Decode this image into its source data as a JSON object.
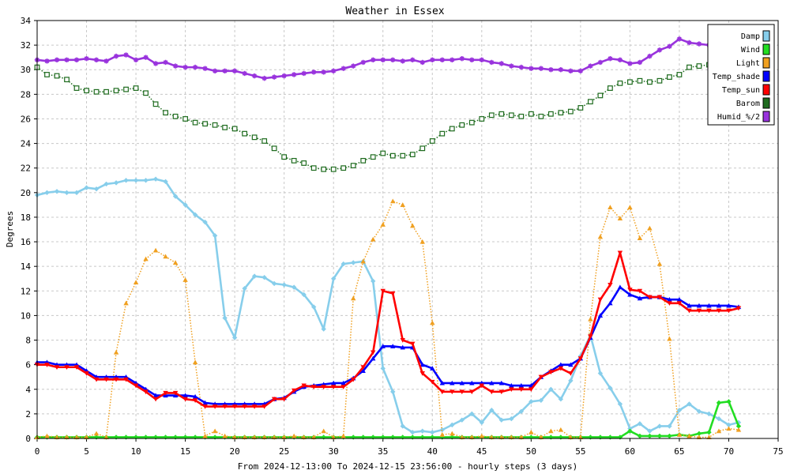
{
  "chart_data": {
    "type": "line",
    "title": "Weather in Essex",
    "xlabel": "From 2024-12-13:00 To 2024-12-15 23:56:00 - hourly steps (3 days)",
    "ylabel": "Degrees",
    "xlim": [
      0,
      75
    ],
    "ylim": [
      0,
      34
    ],
    "x_ticks": [
      0,
      5,
      10,
      15,
      20,
      25,
      30,
      35,
      40,
      45,
      50,
      55,
      60,
      65,
      70,
      75
    ],
    "y_ticks": [
      0,
      2,
      4,
      6,
      8,
      10,
      12,
      14,
      16,
      18,
      20,
      22,
      24,
      26,
      28,
      30,
      32,
      34
    ],
    "grid": true,
    "legend": "top-right",
    "x": [
      0,
      1,
      2,
      3,
      4,
      5,
      6,
      7,
      8,
      9,
      10,
      11,
      12,
      13,
      14,
      15,
      16,
      17,
      18,
      19,
      20,
      21,
      22,
      23,
      24,
      25,
      26,
      27,
      28,
      29,
      30,
      31,
      32,
      33,
      34,
      35,
      36,
      37,
      38,
      39,
      40,
      41,
      42,
      43,
      44,
      45,
      46,
      47,
      48,
      49,
      50,
      51,
      52,
      53,
      54,
      55,
      56,
      57,
      58,
      59,
      60,
      61,
      62,
      63,
      64,
      65,
      66,
      67,
      68,
      69,
      70,
      71
    ],
    "series": [
      {
        "name": "Damp",
        "color": "#87ceeb",
        "style": "solid",
        "marker": "diamond",
        "values": [
          19.8,
          20.0,
          20.1,
          20.0,
          20.0,
          20.4,
          20.3,
          20.7,
          20.8,
          21.0,
          21.0,
          21.0,
          21.1,
          20.9,
          19.7,
          19.0,
          18.2,
          17.6,
          16.5,
          9.8,
          8.2,
          12.2,
          13.2,
          13.1,
          12.6,
          12.5,
          12.3,
          11.7,
          10.7,
          8.9,
          13.0,
          14.2,
          14.3,
          14.4,
          12.8,
          5.7,
          3.8,
          1.0,
          0.5,
          0.6,
          0.5,
          0.7,
          1.1,
          1.5,
          2.0,
          1.3,
          2.3,
          1.5,
          1.6,
          2.2,
          3.0,
          3.1,
          4.0,
          3.2,
          4.7,
          6.7,
          8.4,
          5.3,
          4.1,
          2.8,
          0.8,
          1.2,
          0.6,
          1.0,
          1.0,
          2.3,
          2.8,
          2.2,
          2.0,
          1.6,
          1.1,
          1.3
        ]
      },
      {
        "name": "Wind",
        "color": "#22dd22",
        "style": "solid",
        "marker": "diamond",
        "values": [
          0.1,
          0.1,
          0.1,
          0.1,
          0.1,
          0.1,
          0.1,
          0.1,
          0.1,
          0.1,
          0.1,
          0.1,
          0.1,
          0.1,
          0.1,
          0.1,
          0.1,
          0.1,
          0.1,
          0.1,
          0.1,
          0.1,
          0.1,
          0.1,
          0.1,
          0.1,
          0.1,
          0.1,
          0.1,
          0.1,
          0.1,
          0.1,
          0.1,
          0.1,
          0.1,
          0.1,
          0.1,
          0.1,
          0.1,
          0.1,
          0.1,
          0.1,
          0.1,
          0.1,
          0.1,
          0.1,
          0.1,
          0.1,
          0.1,
          0.1,
          0.1,
          0.1,
          0.1,
          0.1,
          0.1,
          0.1,
          0.1,
          0.1,
          0.1,
          0.1,
          0.6,
          0.2,
          0.2,
          0.2,
          0.2,
          0.3,
          0.2,
          0.4,
          0.5,
          2.9,
          3.0,
          1.0
        ]
      },
      {
        "name": "Light",
        "color": "#f0a020",
        "style": "dotted",
        "marker": "triangle-up",
        "values": [
          0.1,
          0.2,
          0.1,
          0.1,
          0.1,
          0.1,
          0.4,
          0.1,
          7.0,
          11.0,
          12.7,
          14.6,
          15.3,
          14.8,
          14.3,
          12.9,
          6.2,
          0.2,
          0.6,
          0.2,
          0.1,
          0.1,
          0.1,
          0.1,
          0.1,
          0.1,
          0.2,
          0.1,
          0.1,
          0.6,
          0.1,
          0.2,
          11.4,
          14.4,
          16.2,
          17.4,
          19.3,
          19.0,
          17.3,
          16.0,
          9.4,
          0.3,
          0.4,
          0.1,
          0.1,
          0.2,
          0.1,
          0.1,
          0.1,
          0.1,
          0.5,
          0.1,
          0.6,
          0.7,
          0.1,
          0.1,
          9.7,
          16.4,
          18.8,
          17.9,
          18.8,
          16.3,
          17.1,
          14.2,
          8.1,
          0.3,
          0.2,
          0.1,
          0.1,
          0.6,
          0.8,
          0.7
        ]
      },
      {
        "name": "Temp_shade",
        "color": "#0000ff",
        "style": "solid",
        "marker": "triangle-up",
        "values": [
          6.2,
          6.2,
          6.0,
          6.0,
          6.0,
          5.5,
          5.0,
          5.0,
          5.0,
          5.0,
          4.5,
          4.0,
          3.5,
          3.5,
          3.5,
          3.5,
          3.4,
          2.9,
          2.8,
          2.8,
          2.8,
          2.8,
          2.8,
          2.8,
          3.2,
          3.3,
          3.8,
          4.2,
          4.3,
          4.4,
          4.5,
          4.5,
          4.9,
          5.5,
          6.5,
          7.5,
          7.5,
          7.4,
          7.4,
          6.0,
          5.7,
          4.5,
          4.5,
          4.5,
          4.5,
          4.5,
          4.5,
          4.5,
          4.3,
          4.3,
          4.3,
          5.0,
          5.5,
          6.0,
          6.0,
          6.5,
          8.2,
          10.0,
          11.0,
          12.3,
          11.7,
          11.4,
          11.5,
          11.5,
          11.3,
          11.3,
          10.8,
          10.8,
          10.8,
          10.8,
          10.8,
          10.7
        ]
      },
      {
        "name": "Temp_sun",
        "color": "#ff0000",
        "style": "solid",
        "marker": "triangle-down",
        "values": [
          6.0,
          6.0,
          5.8,
          5.8,
          5.8,
          5.3,
          4.8,
          4.8,
          4.8,
          4.8,
          4.3,
          3.8,
          3.2,
          3.7,
          3.7,
          3.2,
          3.1,
          2.6,
          2.6,
          2.6,
          2.6,
          2.6,
          2.6,
          2.6,
          3.2,
          3.2,
          3.9,
          4.3,
          4.2,
          4.2,
          4.2,
          4.2,
          4.8,
          5.8,
          7.0,
          12.0,
          11.8,
          8.0,
          7.7,
          5.3,
          4.6,
          3.8,
          3.8,
          3.8,
          3.8,
          4.3,
          3.8,
          3.8,
          4.0,
          4.0,
          4.0,
          5.0,
          5.4,
          5.7,
          5.3,
          6.5,
          8.3,
          11.3,
          12.5,
          15.1,
          12.1,
          12.0,
          11.5,
          11.5,
          11.0,
          11.0,
          10.4,
          10.4,
          10.4,
          10.4,
          10.4,
          10.6
        ]
      },
      {
        "name": "Barom",
        "color": "#1e6b1e",
        "style": "dotted",
        "marker": "square",
        "values": [
          30.2,
          29.6,
          29.5,
          29.2,
          28.5,
          28.3,
          28.2,
          28.2,
          28.3,
          28.4,
          28.5,
          28.1,
          27.2,
          26.5,
          26.2,
          26.0,
          25.7,
          25.6,
          25.5,
          25.3,
          25.2,
          24.8,
          24.5,
          24.2,
          23.6,
          22.9,
          22.6,
          22.4,
          22.0,
          21.9,
          21.9,
          22.0,
          22.2,
          22.6,
          22.9,
          23.2,
          23.0,
          23.0,
          23.1,
          23.6,
          24.2,
          24.8,
          25.2,
          25.5,
          25.7,
          26.0,
          26.3,
          26.4,
          26.3,
          26.2,
          26.4,
          26.2,
          26.4,
          26.5,
          26.6,
          26.9,
          27.4,
          27.9,
          28.5,
          28.9,
          29.0,
          29.1,
          29.0,
          29.1,
          29.4,
          29.6,
          30.2,
          30.3,
          30.4,
          30.5,
          30.5,
          30.6
        ]
      },
      {
        "name": "Humid_%/2",
        "color": "#9933dd",
        "style": "solid",
        "marker": "star",
        "values": [
          30.8,
          30.7,
          30.8,
          30.8,
          30.8,
          30.9,
          30.8,
          30.7,
          31.1,
          31.2,
          30.8,
          31.0,
          30.5,
          30.6,
          30.3,
          30.2,
          30.2,
          30.1,
          29.9,
          29.9,
          29.9,
          29.7,
          29.5,
          29.3,
          29.4,
          29.5,
          29.6,
          29.7,
          29.8,
          29.8,
          29.9,
          30.1,
          30.3,
          30.6,
          30.8,
          30.8,
          30.8,
          30.7,
          30.8,
          30.6,
          30.8,
          30.8,
          30.8,
          30.9,
          30.8,
          30.8,
          30.6,
          30.5,
          30.3,
          30.2,
          30.1,
          30.1,
          30.0,
          30.0,
          29.9,
          29.9,
          30.3,
          30.6,
          30.9,
          30.8,
          30.5,
          30.6,
          31.1,
          31.6,
          31.9,
          32.5,
          32.2,
          32.1,
          32.0,
          32.0,
          32.0,
          32.0
        ]
      }
    ]
  }
}
